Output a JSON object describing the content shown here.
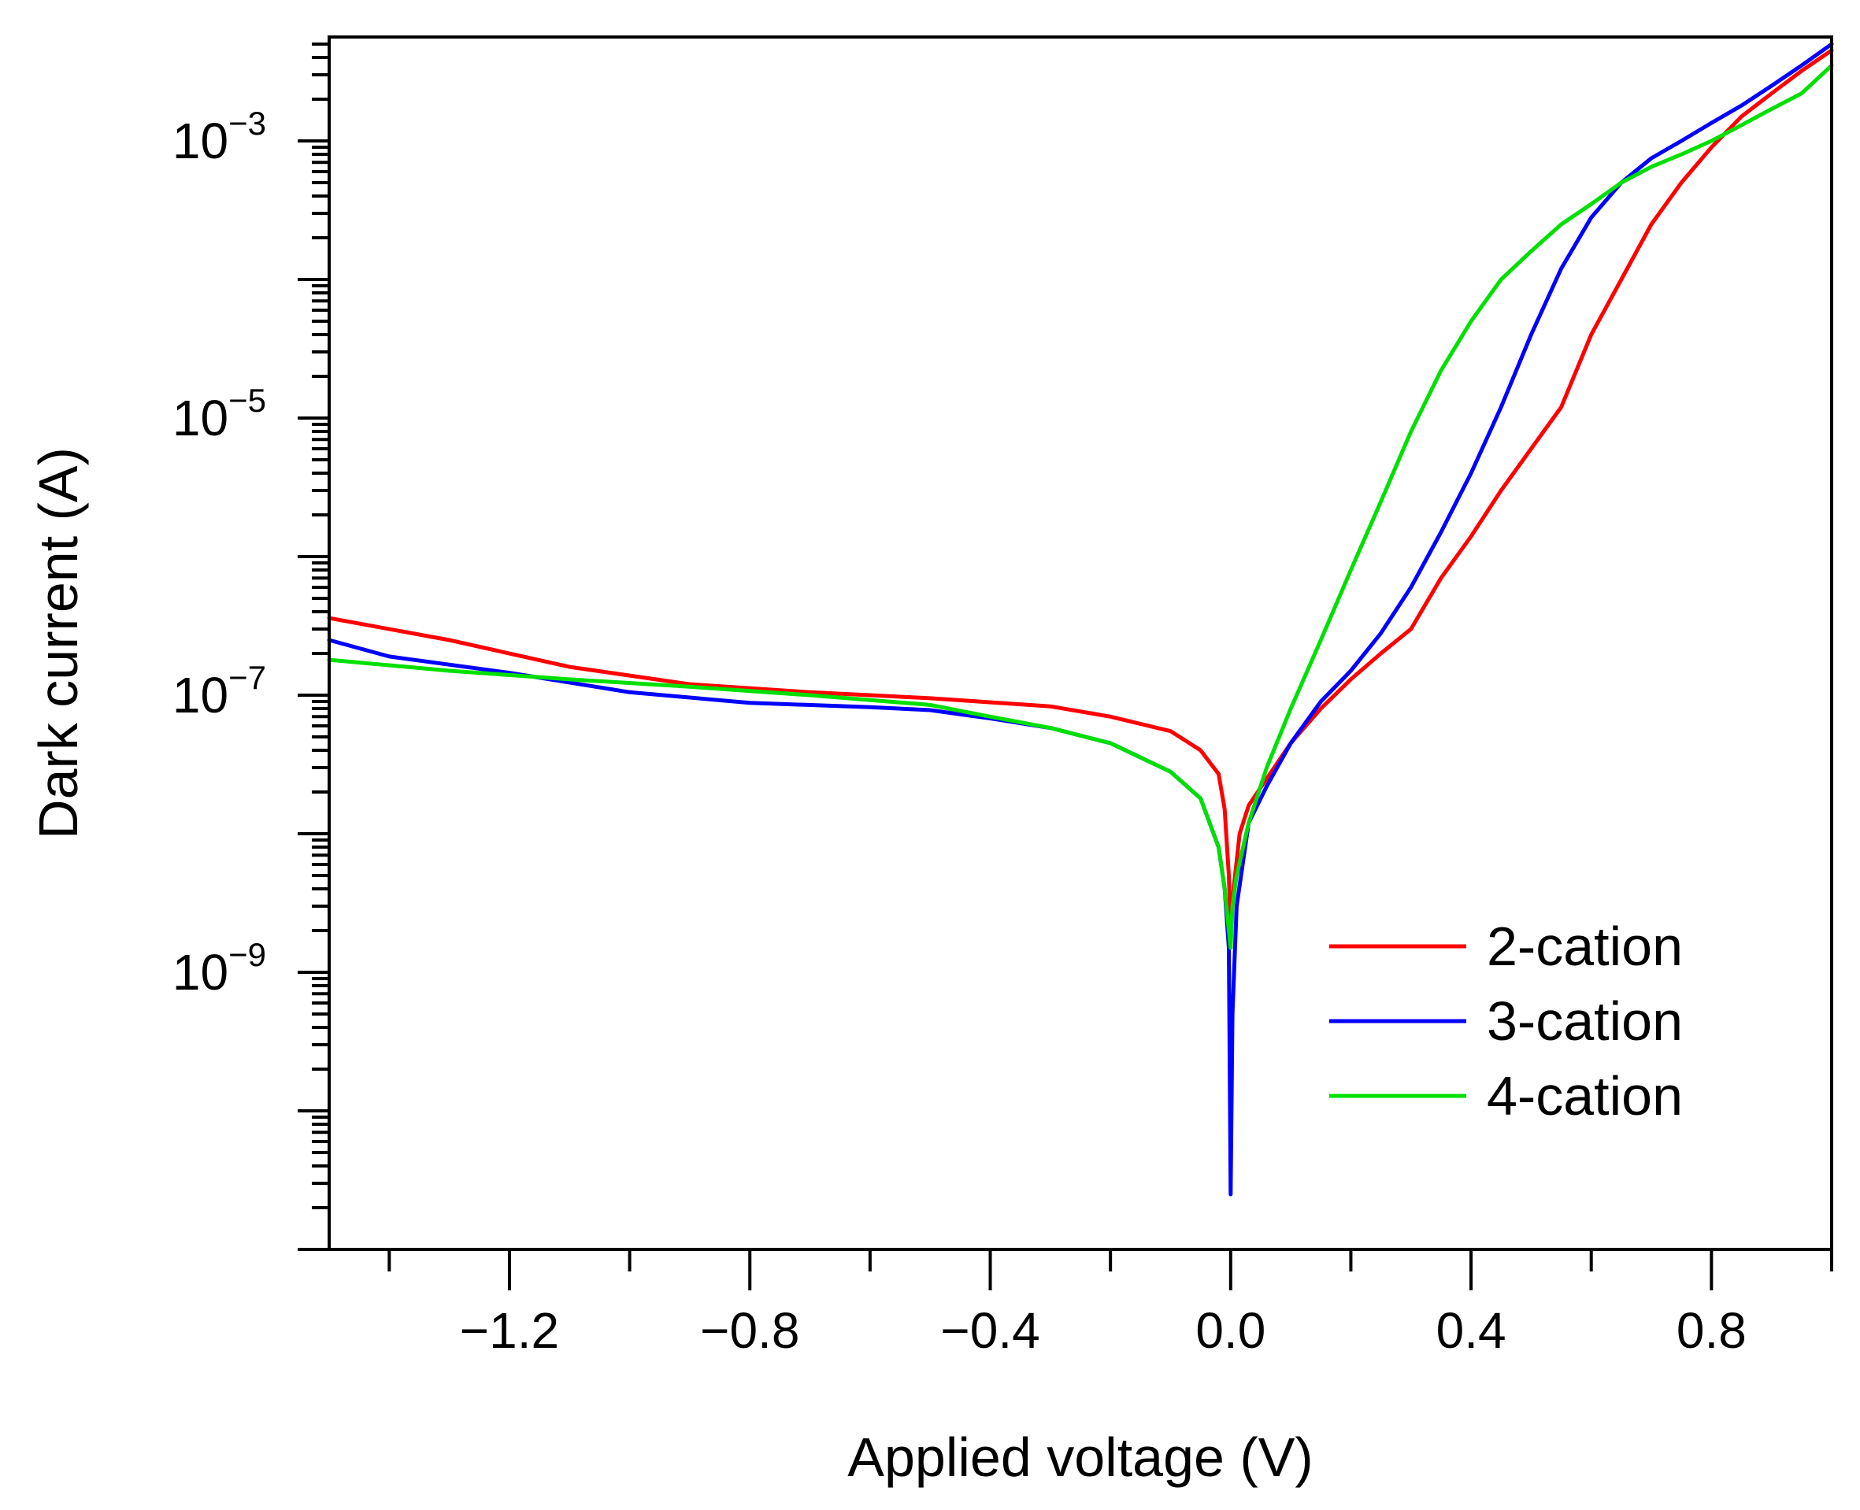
{
  "chart_data": {
    "type": "line",
    "title": "",
    "xlabel": "Applied voltage (V)",
    "ylabel": "Dark current (A)",
    "xlim": [
      -1.5,
      1.0
    ],
    "ylim_log10": [
      -11.0,
      -2.25
    ],
    "yscale": "log",
    "grid": false,
    "legend_position": "lower-right",
    "x_ticks": [
      {
        "value": -1.2,
        "label": "−1.2"
      },
      {
        "value": -0.8,
        "label": "−0.8"
      },
      {
        "value": -0.4,
        "label": "−0.4"
      },
      {
        "value": 0.0,
        "label": "0.0"
      },
      {
        "value": 0.4,
        "label": "0.4"
      },
      {
        "value": 0.8,
        "label": "0.8"
      }
    ],
    "x_minor_ticks": [
      -1.4,
      -1.0,
      -0.6,
      -0.2,
      0.2,
      0.6,
      1.0
    ],
    "y_ticks": [
      {
        "exp": -3,
        "base": "10",
        "sup": "−3"
      },
      {
        "exp": -5,
        "base": "10",
        "sup": "−5"
      },
      {
        "exp": -7,
        "base": "10",
        "sup": "−7"
      },
      {
        "exp": -9,
        "base": "10",
        "sup": "−9"
      }
    ],
    "y_major_decades": [
      -11,
      -10,
      -9,
      -8,
      -7,
      -6,
      -5,
      -4,
      -3,
      -2
    ],
    "series": [
      {
        "name": "2-cation",
        "color": "#ff0000",
        "points": [
          [
            -1.5,
            3.6e-07
          ],
          [
            -1.3,
            2.5e-07
          ],
          [
            -1.1,
            1.6e-07
          ],
          [
            -0.9,
            1.2e-07
          ],
          [
            -0.7,
            1.05e-07
          ],
          [
            -0.5,
            9.5e-08
          ],
          [
            -0.3,
            8.3e-08
          ],
          [
            -0.2,
            7e-08
          ],
          [
            -0.1,
            5.5e-08
          ],
          [
            -0.05,
            4e-08
          ],
          [
            -0.02,
            2.7e-08
          ],
          [
            -0.01,
            1.5e-08
          ],
          [
            -0.003,
            5e-09
          ],
          [
            0.0,
            2e-09
          ],
          [
            0.005,
            4e-09
          ],
          [
            0.015,
            1e-08
          ],
          [
            0.03,
            1.6e-08
          ],
          [
            0.06,
            2.5e-08
          ],
          [
            0.1,
            4.5e-08
          ],
          [
            0.15,
            8e-08
          ],
          [
            0.2,
            1.3e-07
          ],
          [
            0.25,
            2e-07
          ],
          [
            0.3,
            3e-07
          ],
          [
            0.35,
            7e-07
          ],
          [
            0.4,
            1.4e-06
          ],
          [
            0.45,
            3e-06
          ],
          [
            0.5,
            6e-06
          ],
          [
            0.55,
            1.2e-05
          ],
          [
            0.6,
            4e-05
          ],
          [
            0.65,
            0.0001
          ],
          [
            0.7,
            0.00025
          ],
          [
            0.75,
            0.0005
          ],
          [
            0.8,
            0.0009
          ],
          [
            0.85,
            0.0015
          ],
          [
            0.9,
            0.0022
          ],
          [
            0.95,
            0.0032
          ],
          [
            1.0,
            0.0045
          ]
        ]
      },
      {
        "name": "3-cation",
        "color": "#0000ff",
        "points": [
          [
            -1.5,
            2.5e-07
          ],
          [
            -1.4,
            1.9e-07
          ],
          [
            -1.2,
            1.45e-07
          ],
          [
            -1.0,
            1.05e-07
          ],
          [
            -0.8,
            8.8e-08
          ],
          [
            -0.6,
            8.2e-08
          ],
          [
            -0.5,
            7.8e-08
          ],
          [
            -0.4,
            6.8e-08
          ],
          [
            -0.3,
            5.8e-08
          ],
          [
            -0.2,
            4.5e-08
          ],
          [
            -0.1,
            2.8e-08
          ],
          [
            -0.05,
            1.8e-08
          ],
          [
            -0.02,
            8e-09
          ],
          [
            -0.01,
            4e-09
          ],
          [
            -0.003,
            1.5e-09
          ],
          [
            0.0,
            2.5e-11
          ],
          [
            0.003,
            5e-10
          ],
          [
            0.01,
            3e-09
          ],
          [
            0.03,
            1.2e-08
          ],
          [
            0.06,
            2.2e-08
          ],
          [
            0.1,
            4.5e-08
          ],
          [
            0.15,
            9e-08
          ],
          [
            0.2,
            1.5e-07
          ],
          [
            0.25,
            2.8e-07
          ],
          [
            0.3,
            6e-07
          ],
          [
            0.35,
            1.5e-06
          ],
          [
            0.4,
            4e-06
          ],
          [
            0.45,
            1.2e-05
          ],
          [
            0.5,
            4e-05
          ],
          [
            0.55,
            0.00012
          ],
          [
            0.6,
            0.00028
          ],
          [
            0.65,
            0.0005
          ],
          [
            0.7,
            0.00075
          ],
          [
            0.75,
            0.001
          ],
          [
            0.8,
            0.00135
          ],
          [
            0.85,
            0.0018
          ],
          [
            0.9,
            0.0025
          ],
          [
            0.95,
            0.0035
          ],
          [
            1.0,
            0.005
          ]
        ]
      },
      {
        "name": "4-cation",
        "color": "#00e000",
        "points": [
          [
            -1.5,
            1.8e-07
          ],
          [
            -1.3,
            1.5e-07
          ],
          [
            -1.1,
            1.3e-07
          ],
          [
            -0.9,
            1.15e-07
          ],
          [
            -0.7,
            1e-07
          ],
          [
            -0.5,
            8.5e-08
          ],
          [
            -0.4,
            7e-08
          ],
          [
            -0.3,
            5.8e-08
          ],
          [
            -0.2,
            4.5e-08
          ],
          [
            -0.1,
            2.8e-08
          ],
          [
            -0.05,
            1.8e-08
          ],
          [
            -0.02,
            8e-09
          ],
          [
            -0.01,
            4e-09
          ],
          [
            -0.003,
            2e-09
          ],
          [
            0.0,
            1.5e-09
          ],
          [
            0.003,
            3e-09
          ],
          [
            0.01,
            5e-09
          ],
          [
            0.03,
            1.2e-08
          ],
          [
            0.06,
            3e-08
          ],
          [
            0.1,
            8e-08
          ],
          [
            0.15,
            2.5e-07
          ],
          [
            0.2,
            8e-07
          ],
          [
            0.25,
            2.5e-06
          ],
          [
            0.3,
            8e-06
          ],
          [
            0.35,
            2.2e-05
          ],
          [
            0.4,
            5e-05
          ],
          [
            0.45,
            0.0001
          ],
          [
            0.5,
            0.00016
          ],
          [
            0.55,
            0.00025
          ],
          [
            0.6,
            0.00035
          ],
          [
            0.65,
            0.0005
          ],
          [
            0.7,
            0.00065
          ],
          [
            0.75,
            0.0008
          ],
          [
            0.8,
            0.001
          ],
          [
            0.85,
            0.0013
          ],
          [
            0.9,
            0.0017
          ],
          [
            0.95,
            0.0022
          ],
          [
            1.0,
            0.0035
          ]
        ]
      }
    ]
  }
}
